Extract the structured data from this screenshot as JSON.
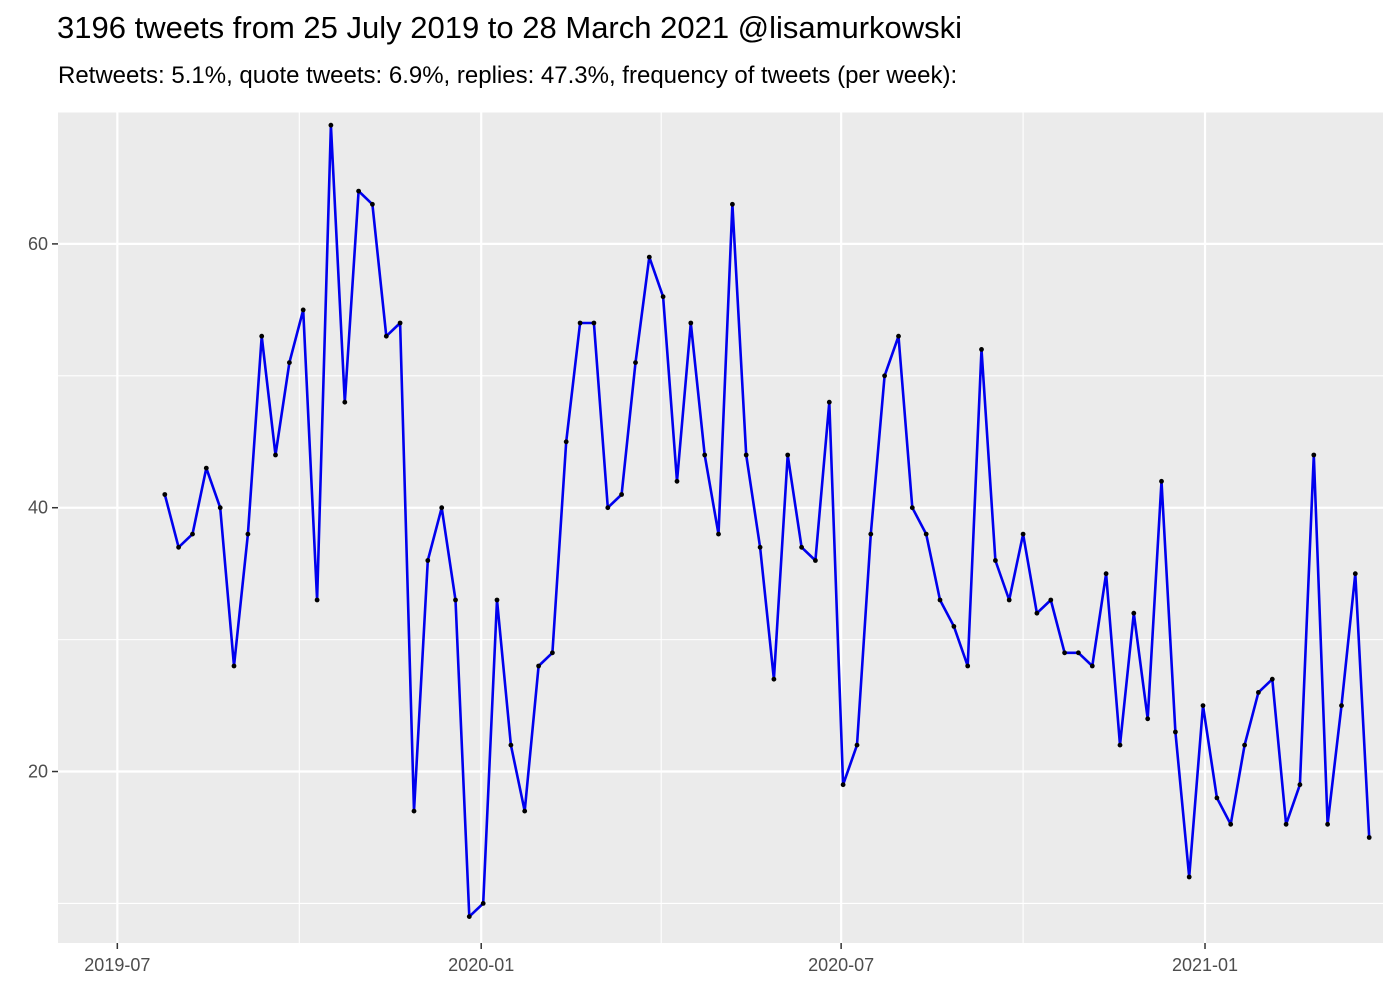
{
  "chart_data": {
    "type": "line",
    "title": "3196 tweets from 25 July 2019 to 28 March 2021 @lisamurkowski",
    "subtitle": "Retweets: 5.1%, quote tweets: 6.9%, replies: 47.3%, frequency of tweets (per week):",
    "xlabel": "",
    "ylabel": "",
    "x_range": [
      "2019-06-01",
      "2021-04-01"
    ],
    "ylim": [
      7,
      70
    ],
    "x_ticks": [
      {
        "date": "2019-07-01",
        "label": "2019-07"
      },
      {
        "date": "2020-01-01",
        "label": "2020-01"
      },
      {
        "date": "2020-07-01",
        "label": "2020-07"
      },
      {
        "date": "2021-01-01",
        "label": "2021-01"
      }
    ],
    "y_ticks": [
      20,
      40,
      60
    ],
    "grid": true,
    "line_color": "#0000ee",
    "point_color": "#000000",
    "panel_background": "#ebebeb",
    "grid_color": "#ffffff",
    "series": [
      {
        "x": [
          "2019-07-25",
          "2019-08-01",
          "2019-08-08",
          "2019-08-15",
          "2019-08-22",
          "2019-08-29",
          "2019-09-05",
          "2019-09-12",
          "2019-09-19",
          "2019-09-26",
          "2019-10-03",
          "2019-10-10",
          "2019-10-17",
          "2019-10-24",
          "2019-10-31",
          "2019-11-07",
          "2019-11-14",
          "2019-11-21",
          "2019-11-28",
          "2019-12-05",
          "2019-12-12",
          "2019-12-19",
          "2019-12-26",
          "2020-01-02",
          "2020-01-09",
          "2020-01-16",
          "2020-01-23",
          "2020-01-30",
          "2020-02-06",
          "2020-02-13",
          "2020-02-20",
          "2020-02-27",
          "2020-03-05",
          "2020-03-12",
          "2020-03-19",
          "2020-03-26",
          "2020-04-02",
          "2020-04-09",
          "2020-04-16",
          "2020-04-23",
          "2020-04-30",
          "2020-05-07",
          "2020-05-14",
          "2020-05-21",
          "2020-05-28",
          "2020-06-04",
          "2020-06-11",
          "2020-06-18",
          "2020-06-25",
          "2020-07-02",
          "2020-07-09",
          "2020-07-16",
          "2020-07-23",
          "2020-07-30",
          "2020-08-06",
          "2020-08-13",
          "2020-08-20",
          "2020-08-27",
          "2020-09-03",
          "2020-09-10",
          "2020-09-17",
          "2020-09-24",
          "2020-10-01",
          "2020-10-08",
          "2020-10-15",
          "2020-10-22",
          "2020-10-29",
          "2020-11-05",
          "2020-11-12",
          "2020-11-19",
          "2020-11-26",
          "2020-12-03",
          "2020-12-10",
          "2020-12-17",
          "2020-12-24",
          "2020-12-31",
          "2021-01-07",
          "2021-01-14",
          "2021-01-21",
          "2021-01-28",
          "2021-02-04",
          "2021-02-11",
          "2021-02-18",
          "2021-02-25",
          "2021-03-04",
          "2021-03-11",
          "2021-03-18",
          "2021-03-25"
        ],
        "y": [
          41,
          37,
          38,
          43,
          40,
          28,
          38,
          53,
          44,
          51,
          55,
          33,
          69,
          48,
          64,
          63,
          53,
          54,
          17,
          36,
          40,
          33,
          9,
          10,
          33,
          22,
          17,
          28,
          29,
          45,
          54,
          54,
          40,
          41,
          51,
          59,
          56,
          42,
          54,
          44,
          38,
          63,
          44,
          37,
          27,
          44,
          37,
          36,
          48,
          19,
          22,
          38,
          50,
          53,
          40,
          38,
          33,
          31,
          28,
          52,
          36,
          33,
          38,
          32,
          33,
          29,
          29,
          28,
          35,
          22,
          32,
          24,
          42,
          23,
          12,
          25,
          18,
          16,
          22,
          26,
          27,
          16,
          19,
          44,
          16,
          25,
          35,
          15
        ]
      }
    ]
  }
}
